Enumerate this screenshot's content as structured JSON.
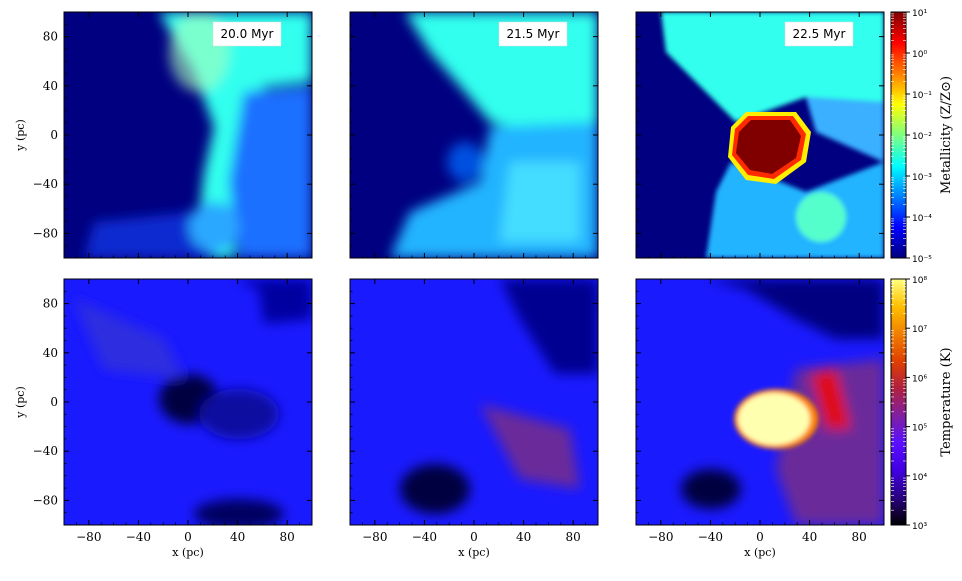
{
  "chart_data": {
    "type": "heatmap",
    "grid_rows": 2,
    "grid_cols": 3,
    "xlabel": "x (pc)",
    "ylabel": "y (pc)",
    "xlim": [
      -100,
      100
    ],
    "ylim": [
      -100,
      100
    ],
    "xticks": [
      -80,
      -40,
      0,
      40,
      80
    ],
    "yticks": [
      80,
      40,
      0,
      -40,
      -80
    ],
    "xtick_labels": [
      "−80",
      "−40",
      "0",
      "40",
      "80"
    ],
    "ytick_labels": [
      "80",
      "40",
      "0",
      "−40",
      "−80"
    ],
    "time_labels": [
      "20.0 Myr",
      "21.5 Myr",
      "22.5 Myr"
    ],
    "rows": [
      {
        "quantity": "metallicity",
        "colorbar_label": "Metallicity (Z/Z⊙)",
        "colorbar_min_exp": -5,
        "colorbar_max_exp": 1,
        "colorbar_ticks": [
          "10⁻⁵",
          "10⁻⁴",
          "10⁻³",
          "10⁻²",
          "10⁻¹",
          "10⁰",
          "10¹"
        ],
        "colormap": "jet"
      },
      {
        "quantity": "temperature",
        "colorbar_label": "Temperature (K)",
        "colorbar_min_exp": 3,
        "colorbar_max_exp": 8,
        "colorbar_ticks": [
          "10³",
          "10⁴",
          "10⁵",
          "10⁶",
          "10⁷",
          "10⁸"
        ],
        "colormap": "gnuplot"
      }
    ]
  },
  "colors": {
    "met_background": "#000080",
    "met_ambient": "#33ffee",
    "met_hot": "#800000",
    "temp_background": "#1a1aff",
    "temp_dark": "#000070",
    "temp_hot": "#ffffb0"
  }
}
